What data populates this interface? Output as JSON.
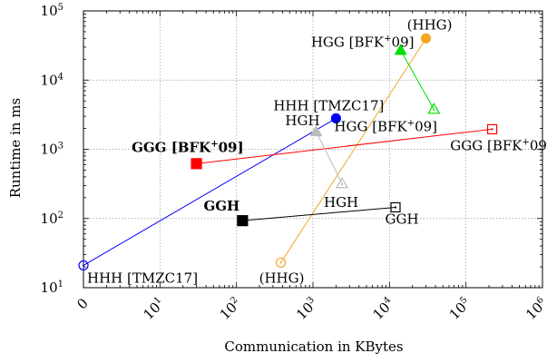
{
  "chart_data": {
    "type": "line",
    "xlabel": "Communication in KBytes",
    "ylabel": "Runtime in ms",
    "x_scale": "log",
    "y_scale": "log",
    "xlim": [
      1,
      1000000
    ],
    "ylim": [
      10,
      100000
    ],
    "grid": true,
    "x_ticks": [
      {
        "value": 1,
        "base": "0",
        "exp": ""
      },
      {
        "value": 10,
        "base": "10",
        "exp": "1"
      },
      {
        "value": 100,
        "base": "10",
        "exp": "2"
      },
      {
        "value": 1000,
        "base": "10",
        "exp": "3"
      },
      {
        "value": 10000,
        "base": "10",
        "exp": "4"
      },
      {
        "value": 100000,
        "base": "10",
        "exp": "5"
      },
      {
        "value": 1000000,
        "base": "10",
        "exp": "6"
      }
    ],
    "y_ticks": [
      {
        "value": 10,
        "base": "10",
        "exp": "1"
      },
      {
        "value": 100,
        "base": "10",
        "exp": "2"
      },
      {
        "value": 1000,
        "base": "10",
        "exp": "3"
      },
      {
        "value": 10000,
        "base": "10",
        "exp": "4"
      },
      {
        "value": 100000,
        "base": "10",
        "exp": "5"
      }
    ],
    "series": [
      {
        "key": "hhh",
        "color": "#0000ff",
        "marker": "circle",
        "points": [
          {
            "x": 1,
            "y": 21,
            "filled": false
          },
          {
            "x": 2000,
            "y": 2800,
            "filled": true
          }
        ]
      },
      {
        "key": "hhg",
        "color": "#f5a623",
        "marker": "circle",
        "points": [
          {
            "x": 380,
            "y": 23,
            "filled": false
          },
          {
            "x": 30000,
            "y": 40000,
            "filled": true
          }
        ]
      },
      {
        "key": "hgg",
        "color": "#00dd00",
        "marker": "triangle",
        "points": [
          {
            "x": 14000,
            "y": 27000,
            "filled": true
          },
          {
            "x": 38000,
            "y": 3800,
            "filled": false
          }
        ]
      },
      {
        "key": "ggg",
        "color": "#ff0000",
        "marker": "square",
        "points": [
          {
            "x": 30,
            "y": 620,
            "filled": true
          },
          {
            "x": 220000,
            "y": 1950,
            "filled": false
          }
        ]
      },
      {
        "key": "hgh",
        "color": "#bbbbbb",
        "marker": "triangle",
        "points": [
          {
            "x": 1100,
            "y": 1800,
            "filled": true
          },
          {
            "x": 2400,
            "y": 320,
            "filled": false
          }
        ]
      },
      {
        "key": "ggh",
        "color": "#000000",
        "marker": "square",
        "points": [
          {
            "x": 120,
            "y": 93,
            "filled": true
          },
          {
            "x": 12000,
            "y": 145,
            "filled": false
          }
        ]
      }
    ],
    "labels": [
      {
        "key": "hhh_bottom",
        "text": "HHH [TMZC17]",
        "bold": false,
        "x": 1,
        "y": 21
      },
      {
        "key": "hhh_top",
        "text": "HHH [TMZC17]",
        "bold": false,
        "x": 2000,
        "y": 2800
      },
      {
        "key": "hhg_bottom",
        "text": "(HHG)",
        "bold": false,
        "x": 380,
        "y": 23
      },
      {
        "key": "hhg_top",
        "text": "(HHG)",
        "bold": false,
        "x": 30000,
        "y": 40000
      },
      {
        "key": "hgg_top",
        "text": "HGG [BFK",
        "sup": "+",
        "tail": "09]",
        "bold": false,
        "x": 14000,
        "y": 27000
      },
      {
        "key": "hgg_bottom",
        "text": "HGG [BFK",
        "sup": "+",
        "tail": "09]",
        "bold": false,
        "x": 38000,
        "y": 3800
      },
      {
        "key": "ggg_left",
        "text": "GGG [BFK",
        "sup": "+",
        "tail": "09]",
        "bold": true,
        "x": 30,
        "y": 620
      },
      {
        "key": "ggg_right",
        "text": "GGG [BFK",
        "sup": "+",
        "tail": "09]",
        "bold": false,
        "x": 220000,
        "y": 1950
      },
      {
        "key": "hgh_top",
        "text": "HGH",
        "bold": false,
        "x": 1100,
        "y": 1800
      },
      {
        "key": "hgh_bottom",
        "text": "HGH",
        "bold": false,
        "x": 2400,
        "y": 320
      },
      {
        "key": "ggh_left",
        "text": "GGH",
        "bold": true,
        "x": 120,
        "y": 93
      },
      {
        "key": "ggh_right",
        "text": "GGH",
        "bold": false,
        "x": 12000,
        "y": 145
      }
    ]
  }
}
